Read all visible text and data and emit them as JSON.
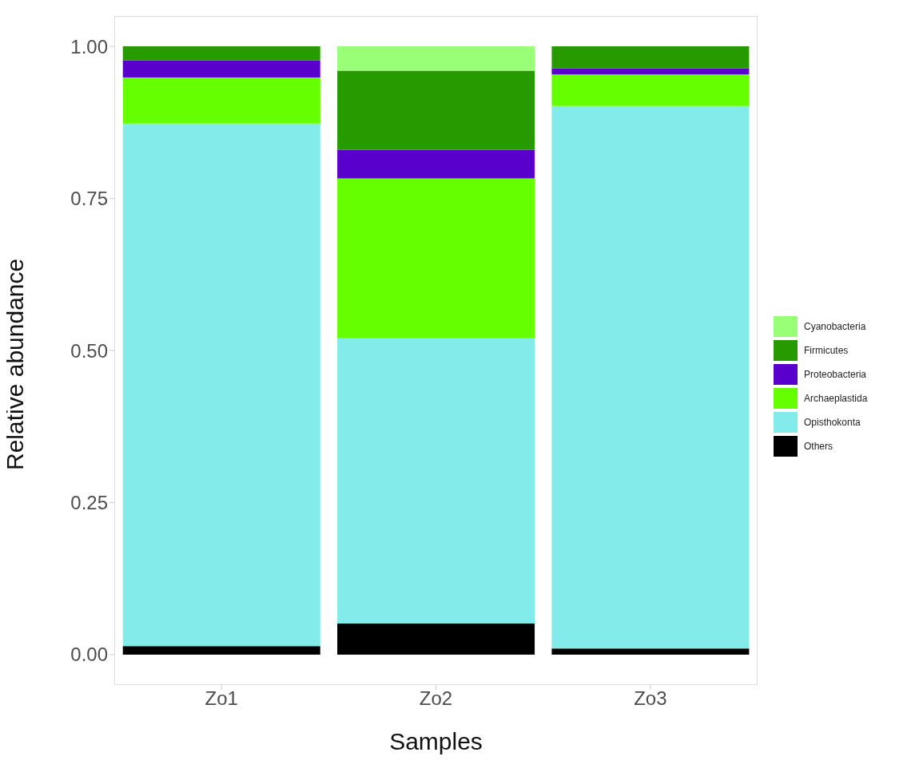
{
  "chart_data": {
    "type": "bar",
    "stacked": true,
    "xlabel": "Samples",
    "ylabel": "Relative abundance",
    "categories": [
      "Zo1",
      "Zo2",
      "Zo3"
    ],
    "series": [
      {
        "name": "Others",
        "color": "#000000",
        "values": [
          0.014,
          0.051,
          0.01
        ]
      },
      {
        "name": "Opisthokonta",
        "color": "#83ecea",
        "values": [
          0.859,
          0.469,
          0.892
        ]
      },
      {
        "name": "Archaeplastida",
        "color": "#66ff00",
        "values": [
          0.076,
          0.263,
          0.052
        ]
      },
      {
        "name": "Proteobacteria",
        "color": "#5a00cc",
        "values": [
          0.028,
          0.047,
          0.01
        ]
      },
      {
        "name": "Firmicutes",
        "color": "#279a00",
        "values": [
          0.023,
          0.13,
          0.036
        ]
      },
      {
        "name": "Cyanobacteria",
        "color": "#99ff77",
        "values": [
          0,
          0.04,
          0
        ]
      }
    ],
    "ylim": [
      -0.05,
      1.05
    ],
    "yticks": [
      {
        "value": 0,
        "label": "0.00"
      },
      {
        "value": 0.25,
        "label": "0.25"
      },
      {
        "value": 0.5,
        "label": "0.50"
      },
      {
        "value": 0.75,
        "label": "0.75"
      },
      {
        "value": 1,
        "label": "1.00"
      }
    ],
    "grid": false,
    "legend": "right"
  }
}
